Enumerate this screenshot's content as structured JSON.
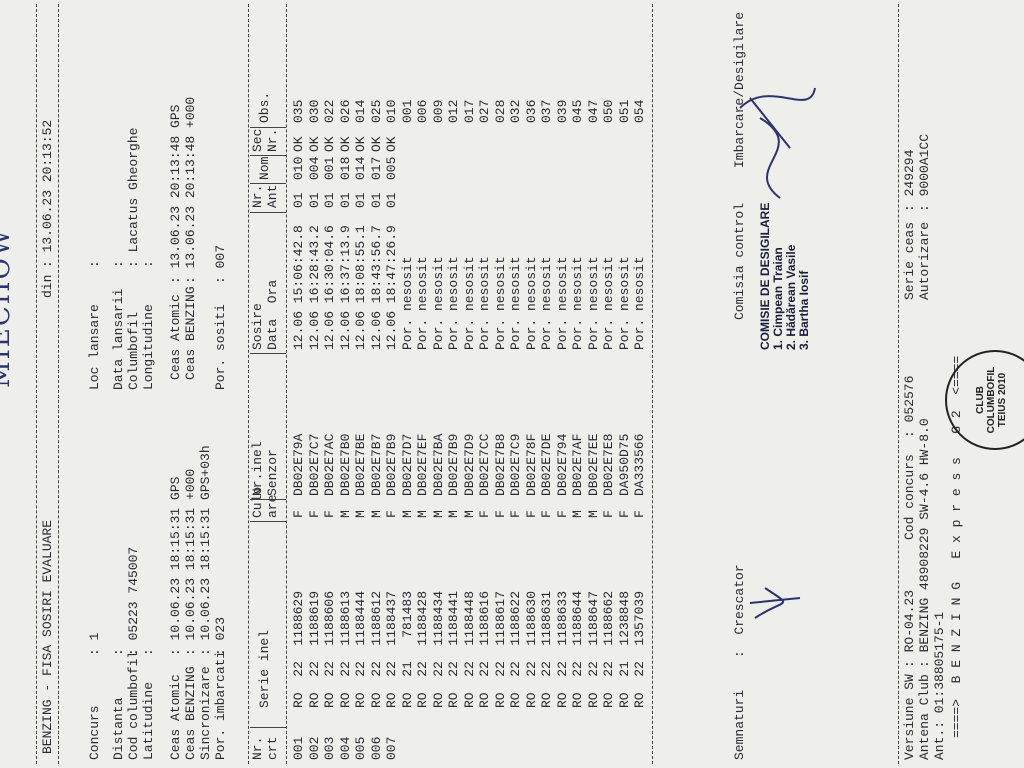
{
  "handwriting": "MIECHOW",
  "header": {
    "title": "BENZING - FISA SOSIRI EVALUARE",
    "date_label": "din",
    "date": ": 13.06.23 20:13:52"
  },
  "info": {
    "concurs": {
      "label": "Concurs",
      "value": ": 1"
    },
    "loc_lansare": {
      "label": "Loc lansare",
      "value": ":"
    },
    "distanta": {
      "label": "Distanta",
      "value": ":"
    },
    "data_lansarii": {
      "label": "Data lansarii",
      "value": ":"
    },
    "cod_columbofil": {
      "label": "Cod columbofil",
      "value": ": 05223 745007"
    },
    "columbofil": {
      "label": "Columbofil",
      "value": ": Lacatus Gheorghe"
    },
    "latitudine": {
      "label": "Latitudine",
      "value": ":"
    },
    "longitudine": {
      "label": "Longitudine",
      "value": ":"
    },
    "ceas_atomic_start": {
      "label": "Ceas Atomic",
      "value": ": 10.06.23 18:15:31 GPS"
    },
    "ceas_atomic_end": {
      "label": "Ceas Atomic",
      "value": ": 13.06.23 20:13:48 GPS"
    },
    "ceas_benzing_start": {
      "label": "Ceas BENZING",
      "value": ": 10.06.23 18:15:31 +000"
    },
    "ceas_benzing_end": {
      "label": "Ceas BENZING",
      "value": ": 13.06.23 20:13:48 +000"
    },
    "sincronizare": {
      "label": "Sincronizare",
      "value": ": 10.06.23 18:15:31 GPS+03h"
    },
    "por_imbarcati": {
      "label": "Por. imbarcati",
      "value": ": 023"
    },
    "por_sositi": {
      "label": "Por. sositi",
      "value": ": 007"
    }
  },
  "table": {
    "headers": [
      [
        "Nr.",
        "crt"
      ],
      [
        "Serie inel"
      ],
      [
        "Culo",
        "are"
      ],
      [
        "Nr.inel",
        "Senzor"
      ],
      [
        "Sosire",
        "Data  Ora"
      ],
      [
        "Nr.",
        "Ant"
      ],
      [
        "Nom"
      ],
      [
        "Sec",
        "Nr."
      ],
      [
        "Obs."
      ]
    ],
    "rows": [
      [
        "001",
        "RO  22  1188629",
        "F",
        "DB02E79A",
        "12.06 15:06:42.8",
        "01",
        "010",
        "OK",
        "035"
      ],
      [
        "002",
        "RO  22  1188619",
        "F",
        "DB02E7C7",
        "12.06 16:28:43.2",
        "01",
        "004",
        "OK",
        "030"
      ],
      [
        "003",
        "RO  22  1188606",
        "F",
        "DB02E7AC",
        "12.06 16:30:04.6",
        "01",
        "001",
        "OK",
        "022"
      ],
      [
        "004",
        "RO  22  1188613",
        "M",
        "DB02E7B0",
        "12.06 16:37:13.9",
        "01",
        "018",
        "OK",
        "026"
      ],
      [
        "005",
        "RO  22  1188444",
        "M",
        "DB02E7BE",
        "12.06 18:08:55.1",
        "01",
        "014",
        "OK",
        "014"
      ],
      [
        "006",
        "RO  22  1188612",
        "M",
        "DB02E7B7",
        "12.06 18:43:56.7",
        "01",
        "017",
        "OK",
        "025"
      ],
      [
        "007",
        "RO  22  1188437",
        "F",
        "DB02E7B9",
        "12.06 18:47:26.9",
        "01",
        "005",
        "OK",
        "010"
      ],
      [
        null,
        "RO  21   781483",
        "M",
        "DB02E7D7",
        "Por. nesosit",
        null,
        null,
        null,
        "001"
      ],
      [
        null,
        "RO  22  1188428",
        "M",
        "DB02E7EF",
        "Por. nesosit",
        null,
        null,
        null,
        "006"
      ],
      [
        null,
        "RO  22  1188434",
        "M",
        "DB02E7BA",
        "Por. nesosit",
        null,
        null,
        null,
        "009"
      ],
      [
        null,
        "RO  22  1188441",
        "M",
        "DB02E7B9",
        "Por. nesosit",
        null,
        null,
        null,
        "012"
      ],
      [
        null,
        "RO  22  1188448",
        "M",
        "DB02E7D9",
        "Por. nesosit",
        null,
        null,
        null,
        "017"
      ],
      [
        null,
        "RO  22  1188616",
        "F",
        "DB02E7CC",
        "Por. nesosit",
        null,
        null,
        null,
        "027"
      ],
      [
        null,
        "RO  22  1188617",
        "F",
        "DB02E7B8",
        "Por. nesosit",
        null,
        null,
        null,
        "028"
      ],
      [
        null,
        "RO  22  1188622",
        "F",
        "DB02E7C9",
        "Por. nesosit",
        null,
        null,
        null,
        "032"
      ],
      [
        null,
        "RO  22  1188630",
        "F",
        "DB02E78F",
        "Por. nesosit",
        null,
        null,
        null,
        "036"
      ],
      [
        null,
        "RO  22  1188631",
        "F",
        "DB02E7DE",
        "Por. nesosit",
        null,
        null,
        null,
        "037"
      ],
      [
        null,
        "RO  22  1188633",
        "F",
        "DB02E794",
        "Por. nesosit",
        null,
        null,
        null,
        "039"
      ],
      [
        null,
        "RO  22  1188644",
        "M",
        "DB02E7AF",
        "Por. nesosit",
        null,
        null,
        null,
        "045"
      ],
      [
        null,
        "RO  22  1188647",
        "M",
        "DB02E7EE",
        "Por. nesosit",
        null,
        null,
        null,
        "047"
      ],
      [
        null,
        "RO  22  1188662",
        "F",
        "DB02E7E8",
        "Por. nesosit",
        null,
        null,
        null,
        "050"
      ],
      [
        null,
        "RO  21  1238848",
        "F",
        "DA950D75",
        "Por. nesosit",
        null,
        null,
        null,
        "051"
      ],
      [
        null,
        "RO  22  1357039",
        "F",
        "DA333566",
        "Por. nesosit",
        null,
        null,
        null,
        "054"
      ]
    ]
  },
  "commission": {
    "title": "COMISIE DE DESIGILARE",
    "members": [
      "1. Cimpean Traian",
      "2. Hădărean Vasile",
      "3. Bartha Iosif"
    ]
  },
  "signatures": {
    "label": "Semnaturi",
    "breeder": ":  Crescator",
    "control": "Comisia control",
    "unsealing": "Imbarcare/Desigilare"
  },
  "footer": {
    "versiune": {
      "label": "Versiune SW",
      "value": ": RO-04.23"
    },
    "cod_concurs": {
      "label": "Cod concurs",
      "value": ": 052576"
    },
    "serie_ceas": {
      "label": "Serie ceas",
      "value": ": 249294"
    },
    "antena": {
      "label": "Antena Club",
      "value": ": BENZING 48908229 SW-4.6 HW-8.0"
    },
    "autorizare": {
      "label": "Autorizare",
      "value": ": 9000A1CC"
    },
    "ant": "Ant.: 01:38805175-1",
    "banner": "====>  B E N Z I N G   E x p r e s s   G 2  <===="
  },
  "club_stamp": "CLUB COLUMBOFIL TEIUS 2010"
}
